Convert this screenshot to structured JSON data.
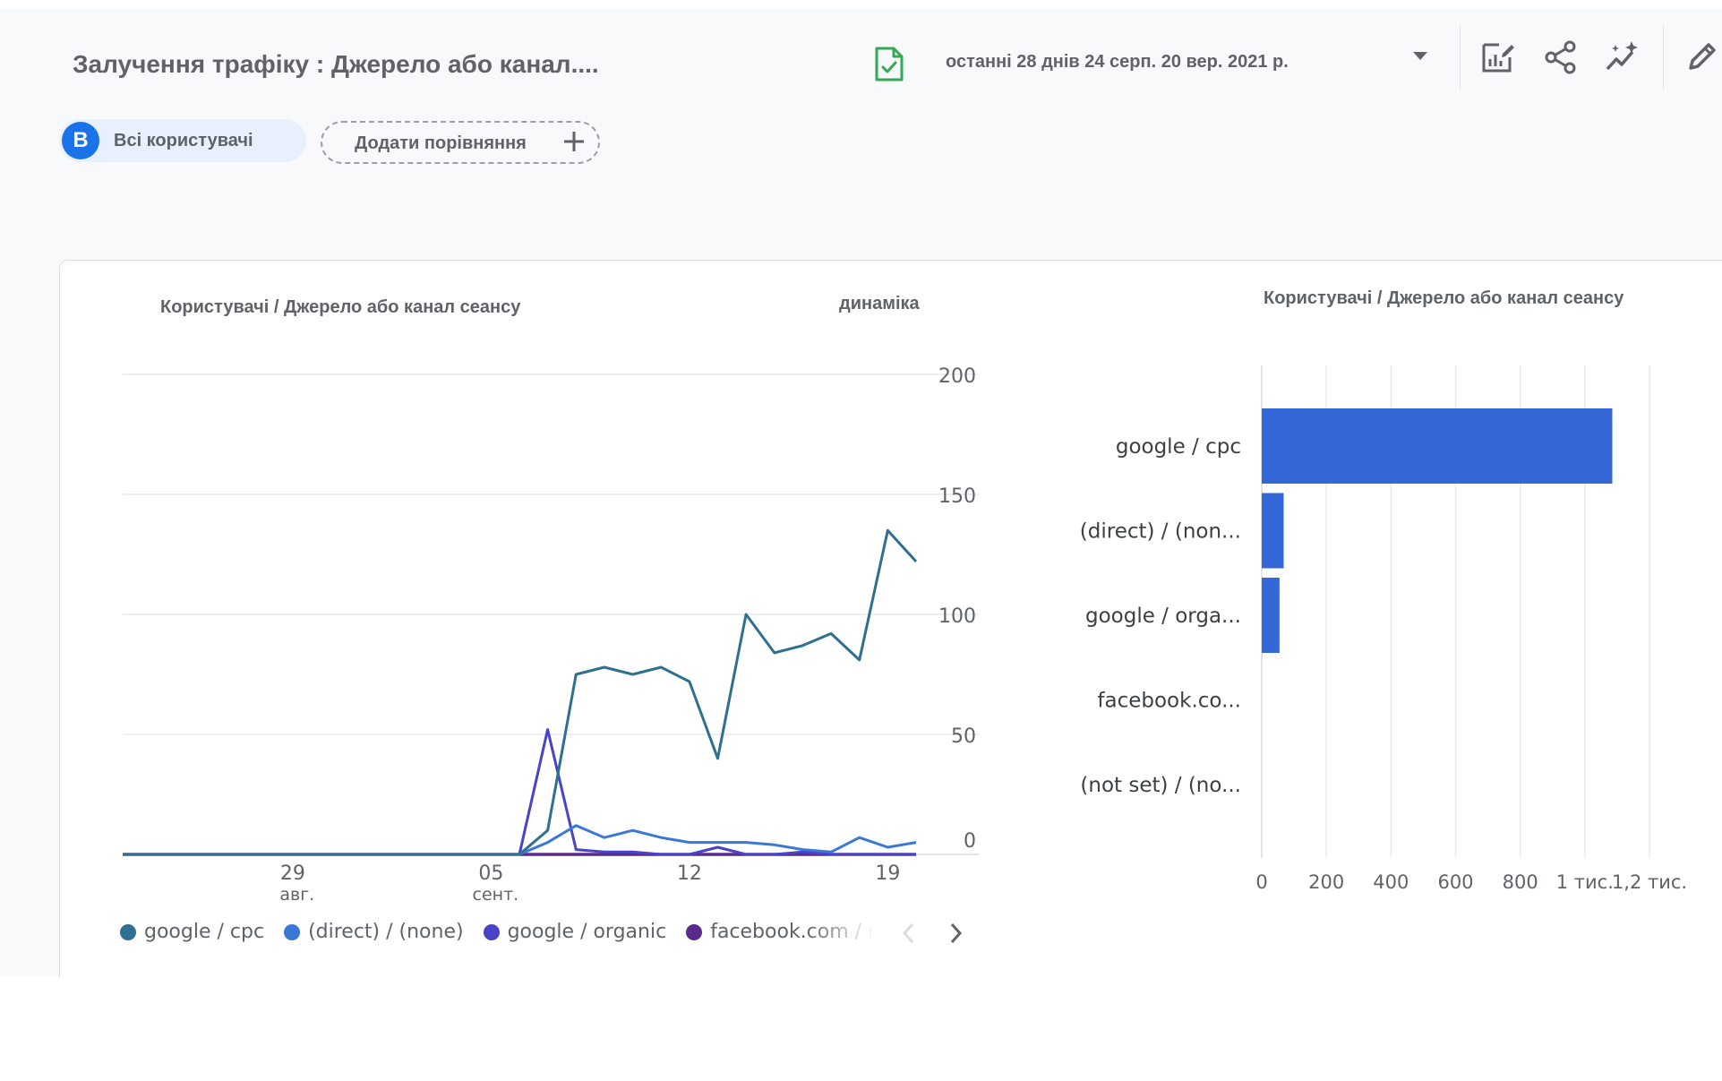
{
  "header": {
    "title": "Залучення трафіку : Джерело або канал....",
    "date_range": "останні 28 днів 24 серп. 20 вер. 2021 р.",
    "icons": {
      "report": "report-check-icon",
      "dropdown": "caret-down-icon",
      "customize": "customize-chart-icon",
      "share": "share-icon",
      "insights": "insights-sparkle-icon",
      "edit": "pencil-icon"
    }
  },
  "chips": {
    "users_badge": "B",
    "users_label": "Всі користувачі",
    "compare_label": "Додати порівняння"
  },
  "colors": {
    "google_cpc": "#2f6f8f",
    "direct": "#3a78d8",
    "organic": "#4a43c8",
    "facebook": "#5a2a8c",
    "bar": "#3368d6",
    "grid": "#e8eaed",
    "badge": "#1a73e8"
  },
  "line_card": {
    "title": "Користувачі / Джерело або канал сеансу",
    "subtitle": "динаміка"
  },
  "bar_card": {
    "title": "Користувачі / Джерело або канал сеансу"
  },
  "legend": [
    {
      "label": "google / cpc",
      "color": "#2f6f8f"
    },
    {
      "label": "(direct) / (none)",
      "color": "#3a78d8"
    },
    {
      "label": "google / organic",
      "color": "#4a43c8"
    },
    {
      "label": "facebook.com / referral",
      "color": "#5a2a8c"
    }
  ],
  "chart_data": [
    {
      "type": "line",
      "title": "Користувачі / Джерело або канал сеансу",
      "subtitle": "динаміка",
      "ylim": [
        0,
        200
      ],
      "y_ticks": [
        "200",
        "150",
        "100",
        "50",
        "0"
      ],
      "x_ticks": [
        {
          "day": 6,
          "label": "29",
          "sublabel": "авг."
        },
        {
          "day": 13,
          "label": "05",
          "sublabel": "сент."
        },
        {
          "day": 20,
          "label": "12",
          "sublabel": ""
        },
        {
          "day": 27,
          "label": "19",
          "sublabel": ""
        }
      ],
      "x_count": 29,
      "grid": true,
      "series": [
        {
          "name": "google / cpc",
          "values": [
            0,
            0,
            0,
            0,
            0,
            0,
            0,
            0,
            0,
            0,
            0,
            0,
            0,
            0,
            0,
            10,
            75,
            78,
            75,
            78,
            72,
            40,
            100,
            84,
            87,
            92,
            81,
            135,
            122
          ]
        },
        {
          "name": "(direct) / (none)",
          "values": [
            0,
            0,
            0,
            0,
            0,
            0,
            0,
            0,
            0,
            0,
            0,
            0,
            0,
            0,
            0,
            5,
            12,
            7,
            10,
            7,
            5,
            5,
            5,
            4,
            2,
            1,
            7,
            3,
            5
          ]
        },
        {
          "name": "google / organic",
          "values": [
            0,
            0,
            0,
            0,
            0,
            0,
            0,
            0,
            0,
            0,
            0,
            0,
            0,
            0,
            0,
            52,
            2,
            1,
            1,
            0,
            0,
            3,
            0,
            0,
            1,
            0,
            0,
            0,
            0
          ]
        },
        {
          "name": "facebook.com / referral",
          "values": [
            0,
            0,
            0,
            0,
            0,
            0,
            0,
            0,
            0,
            0,
            0,
            0,
            0,
            0,
            0,
            0,
            0,
            0,
            0,
            0,
            0,
            0,
            0,
            0,
            0,
            0,
            0,
            0,
            0
          ]
        }
      ]
    },
    {
      "type": "bar",
      "orientation": "horizontal",
      "title": "Користувачі / Джерело або канал сеансу",
      "categories": [
        "google / cpc",
        "(direct) / (non...",
        "google / orga...",
        "facebook.co...",
        "(not set) / (no..."
      ],
      "values": [
        1085,
        68,
        55,
        0,
        0
      ],
      "xlim": [
        0,
        1200
      ],
      "x_ticks": [
        "0",
        "200",
        "400",
        "600",
        "800",
        "1 тис.",
        "1,2 тис."
      ],
      "grid": true
    }
  ]
}
